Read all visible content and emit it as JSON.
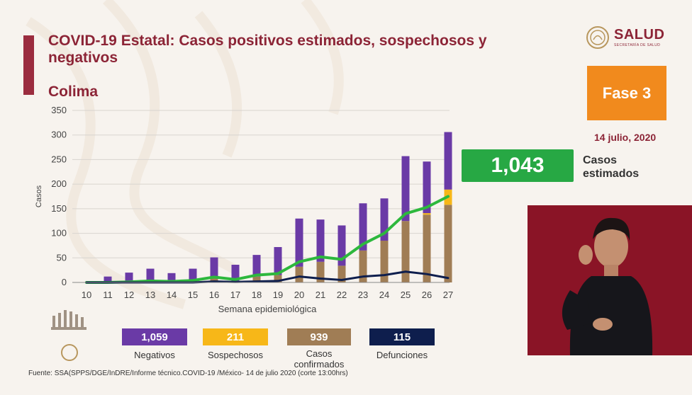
{
  "header": {
    "title": "COVID-19 Estatal: Casos positivos estimados, sospechosos y negativos",
    "subtitle": "Colima",
    "logo_text": "SALUD",
    "logo_subtext": "SECRETARÍA DE SALUD",
    "phase": "Fase 3",
    "date": "14 julio, 2020"
  },
  "estimate": {
    "value": "1,043",
    "label": "Casos estimados"
  },
  "legend": [
    {
      "value": "1,059",
      "label": "Negativos",
      "color": "#6a3aa6"
    },
    {
      "value": "211",
      "label": "Sospechosos",
      "color": "#f7b718"
    },
    {
      "value": "939",
      "label": "Casos confirmados",
      "color": "#a07d55"
    },
    {
      "value": "115",
      "label": "Defunciones",
      "color": "#0e1e4d"
    }
  ],
  "source": "Fuente: SSA(SPPS/DGE/InDRE/Informe técnico.COVID-19 /México- 14 de julio 2020 (corte 13:00hrs)",
  "colors": {
    "brand": "#8c2436",
    "phase": "#f18a1d",
    "estimate": "#27a844",
    "estimated_line": "#2db83d"
  },
  "chart_data": {
    "type": "bar",
    "xlabel": "Semana epidemiológica",
    "ylabel": "Casos",
    "ylim": [
      0,
      350
    ],
    "yticks": [
      0,
      50,
      100,
      150,
      200,
      250,
      300,
      350
    ],
    "grid": true,
    "categories": [
      "10",
      "11",
      "12",
      "13",
      "14",
      "15",
      "16",
      "17",
      "18",
      "19",
      "20",
      "21",
      "22",
      "23",
      "24",
      "25",
      "26",
      "27"
    ],
    "series": [
      {
        "name": "Casos confirmados",
        "kind": "stacked-bar",
        "color": "#a07d55",
        "values": [
          0,
          0,
          0,
          1,
          0,
          1,
          8,
          3,
          12,
          15,
          32,
          42,
          34,
          65,
          85,
          125,
          138,
          158
        ]
      },
      {
        "name": "Sospechosos",
        "kind": "stacked-bar",
        "color": "#f7b718",
        "values": [
          0,
          0,
          0,
          0,
          0,
          0,
          0,
          0,
          0,
          0,
          0,
          0,
          0,
          0,
          0,
          0,
          3,
          31
        ]
      },
      {
        "name": "Negativos",
        "kind": "stacked-bar",
        "color": "#6a3aa6",
        "values": [
          0,
          12,
          20,
          27,
          19,
          27,
          43,
          33,
          44,
          57,
          98,
          86,
          82,
          96,
          86,
          132,
          105,
          117
        ]
      },
      {
        "name": "Casos estimados",
        "kind": "line",
        "color": "#2db83d",
        "values": [
          0,
          0,
          1,
          3,
          2,
          4,
          11,
          6,
          15,
          18,
          42,
          52,
          47,
          78,
          100,
          140,
          153,
          175
        ]
      },
      {
        "name": "Defunciones",
        "kind": "line",
        "color": "#0e1e4d",
        "values": [
          0,
          0,
          0,
          0,
          0,
          0,
          2,
          1,
          2,
          3,
          12,
          8,
          5,
          12,
          15,
          22,
          17,
          9
        ]
      }
    ]
  }
}
